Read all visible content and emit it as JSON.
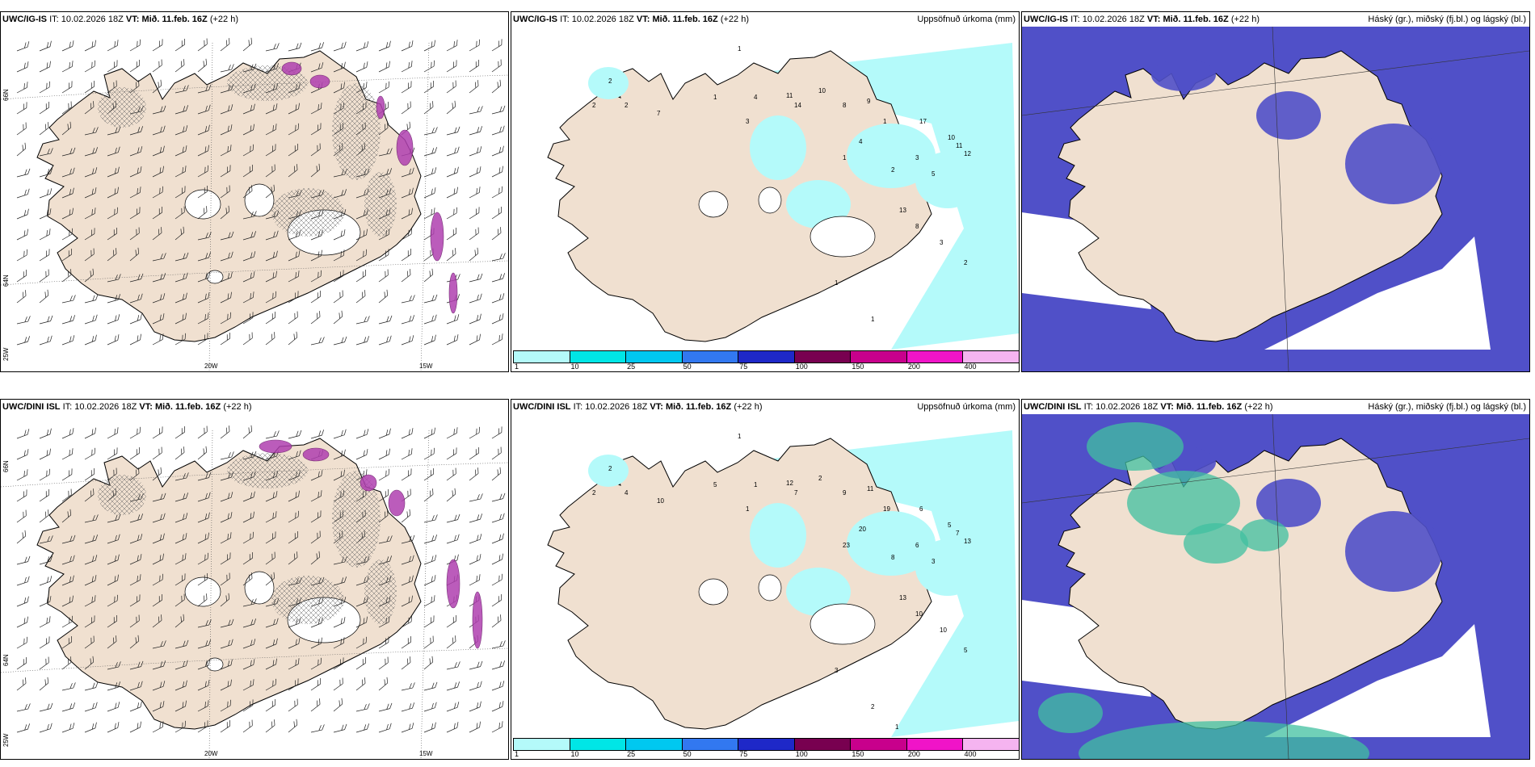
{
  "rows": [
    {
      "model_label": "UWC/IG-IS",
      "panels": [
        {
          "kind": "wind",
          "model": "UWC/IG-IS",
          "it_label": "IT:",
          "it": "10.02.2026 18Z",
          "vt_label": "VT:",
          "vt": "Mið. 11.feb. 16Z",
          "lead": "(+22 h)",
          "right": ""
        },
        {
          "kind": "precip",
          "model": "UWC/IG-IS",
          "it_label": "IT:",
          "it": "10.02.2026 18Z",
          "vt_label": "VT:",
          "vt": "Mið. 11.feb. 16Z",
          "lead": "(+22 h)",
          "right": "Uppsöfnuð úrkoma (mm)"
        },
        {
          "kind": "cloud",
          "model": "UWC/IG-IS",
          "it_label": "IT:",
          "it": "10.02.2026 18Z",
          "vt_label": "VT:",
          "vt": "Mið. 11.feb. 16Z",
          "lead": "(+22 h)",
          "right": "Háský (gr.), miðský (fj.bl.) og lágský (bl.)"
        }
      ]
    },
    {
      "model_label": "UWC/DINI ISL",
      "panels": [
        {
          "kind": "wind",
          "model": "UWC/DINI ISL",
          "it_label": "IT:",
          "it": "10.02.2026 18Z",
          "vt_label": "VT:",
          "vt": "Mið. 11.feb. 16Z",
          "lead": "(+22 h)",
          "right": ""
        },
        {
          "kind": "precip",
          "model": "UWC/DINI ISL",
          "it_label": "IT:",
          "it": "10.02.2026 18Z",
          "vt_label": "VT:",
          "vt": "Mið. 11.feb. 16Z",
          "lead": "(+22 h)",
          "right": "Uppsöfnuð úrkoma (mm)"
        },
        {
          "kind": "cloud",
          "model": "UWC/DINI ISL",
          "it_label": "IT:",
          "it": "10.02.2026 18Z",
          "vt_label": "VT:",
          "vt": "Mið. 11.feb. 16Z",
          "lead": "(+22 h)",
          "right": "Háský (gr.), miðský (fj.bl.) og lágský (bl.)"
        }
      ]
    }
  ],
  "colorbar": {
    "labels": [
      "1",
      "10",
      "25",
      "50",
      "75",
      "100",
      "150",
      "200",
      "400"
    ],
    "colors": [
      "#b4fafa",
      "#00e6e6",
      "#00c8f0",
      "#3278f0",
      "#1e28c8",
      "#780050",
      "#c8008c",
      "#f014c8",
      "#f5b4f0"
    ]
  },
  "axis_labels": {
    "lat_top": "66N",
    "lat_bottom": "64N",
    "lon_left": "20W",
    "lon_right": "15W",
    "corner": "25W"
  },
  "precip_values": {
    "top": [
      "1",
      "2",
      "2",
      "2",
      "7",
      "1",
      "4",
      "3",
      "11",
      "14",
      "10",
      "8",
      "9",
      "4",
      "1",
      "1",
      "2",
      "17",
      "3",
      "5",
      "10",
      "11",
      "12",
      "13",
      "8",
      "3",
      "2",
      "1",
      "1"
    ],
    "bottom": [
      "1",
      "2",
      "2",
      "4",
      "10",
      "5",
      "1",
      "1",
      "12",
      "7",
      "2",
      "9",
      "11",
      "20",
      "19",
      "23",
      "8",
      "6",
      "6",
      "3",
      "5",
      "7",
      "13",
      "13",
      "10",
      "10",
      "5",
      "3",
      "2",
      "1"
    ]
  },
  "colors": {
    "land": "#f0e0d0",
    "coast": "#000000",
    "high_cloud": "#5050c8",
    "mid_cloud": "#2050c8",
    "low_cloud": "#40c0a0",
    "ocean_clear": "#ffffff"
  }
}
